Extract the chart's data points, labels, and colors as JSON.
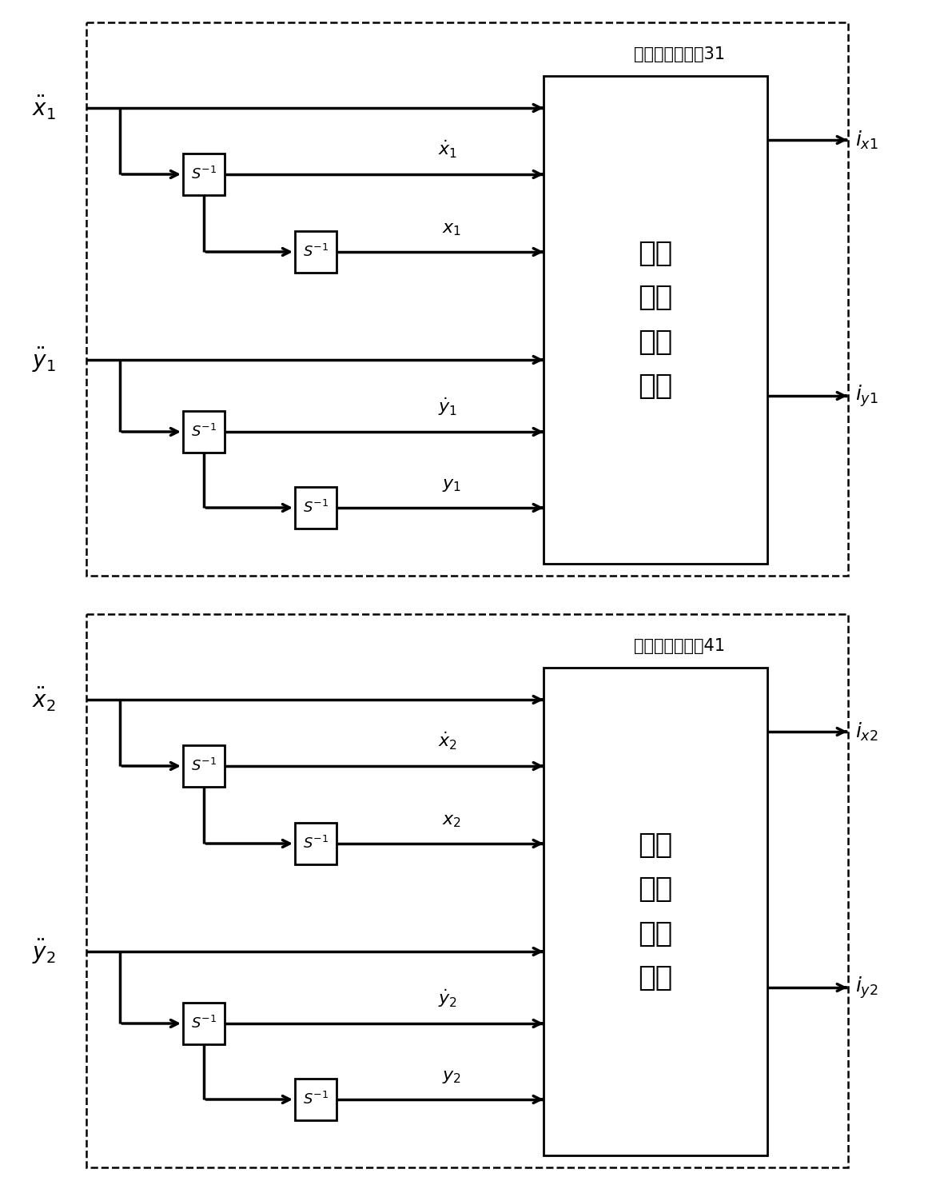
{
  "fig_width": 11.66,
  "fig_height": 14.87,
  "bg_color": "#ffffff",
  "block1_label": "极限\n学习\n机逆\n系统",
  "block2_label": "极限\n学习\n机逆\n系统",
  "controller1_label": "电磁解耦控制器31",
  "controller2_label": "电磁解耦控制器41"
}
